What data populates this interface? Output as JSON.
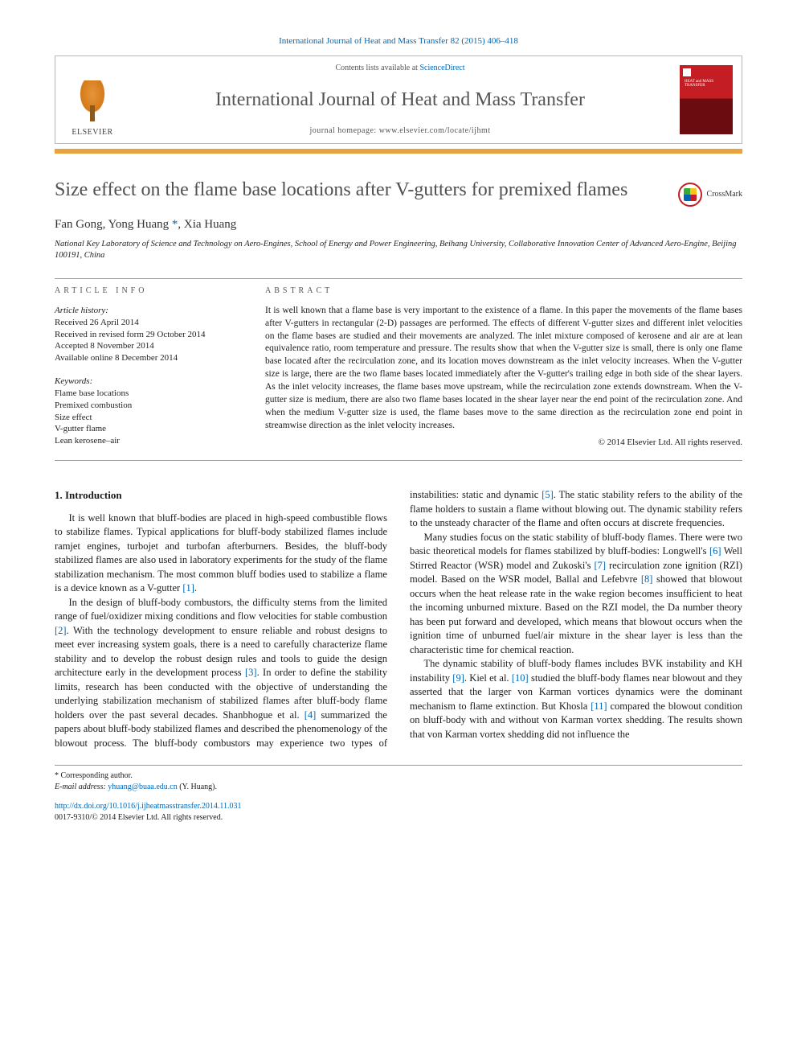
{
  "citation": "International Journal of Heat and Mass Transfer 82 (2015) 406–418",
  "masthead": {
    "publisher": "ELSEVIER",
    "contents_prefix": "Contents lists available at ",
    "contents_link": "ScienceDirect",
    "journal": "International Journal of Heat and Mass Transfer",
    "homepage_label": "journal homepage: ",
    "homepage_url": "www.elsevier.com/locate/ijhmt",
    "cover_text": "HEAT and MASS TRANSFER"
  },
  "crossmark_label": "CrossMark",
  "title": "Size effect on the flame base locations after V-gutters for premixed flames",
  "authors_html": "Fan Gong, Yong Huang *, Xia Huang",
  "authors": [
    {
      "name": "Fan Gong"
    },
    {
      "name": "Yong Huang",
      "corresponding": true
    },
    {
      "name": "Xia Huang"
    }
  ],
  "affiliation": "National Key Laboratory of Science and Technology on Aero-Engines, School of Energy and Power Engineering, Beihang University, Collaborative Innovation Center of Advanced Aero-Engine, Beijing 100191, China",
  "info_head": "ARTICLE INFO",
  "abs_head": "ABSTRACT",
  "history": {
    "label": "Article history:",
    "received": "Received 26 April 2014",
    "revised": "Received in revised form 29 October 2014",
    "accepted": "Accepted 8 November 2014",
    "online": "Available online 8 December 2014"
  },
  "keywords_label": "Keywords:",
  "keywords": [
    "Flame base locations",
    "Premixed combustion",
    "Size effect",
    "V-gutter flame",
    "Lean kerosene–air"
  ],
  "abstract": "It is well known that a flame base is very important to the existence of a flame. In this paper the movements of the flame bases after V-gutters in rectangular (2-D) passages are performed. The effects of different V-gutter sizes and different inlet velocities on the flame bases are studied and their movements are analyzed. The inlet mixture composed of kerosene and air are at lean equivalence ratio, room temperature and pressure. The results show that when the V-gutter size is small, there is only one flame base located after the recirculation zone, and its location moves downstream as the inlet velocity increases. When the V-gutter size is large, there are the two flame bases located immediately after the V-gutter's trailing edge in both side of the shear layers. As the inlet velocity increases, the flame bases move upstream, while the recirculation zone extends downstream. When the V-gutter size is medium, there are also two flame bases located in the shear layer near the end point of the recirculation zone. And when the medium V-gutter size is used, the flame bases move to the same direction as the recirculation zone end point in streamwise direction as the inlet velocity increases.",
  "copyright": "© 2014 Elsevier Ltd. All rights reserved.",
  "section1_head": "1. Introduction",
  "para1": "It is well known that bluff-bodies are placed in high-speed combustible flows to stabilize flames. Typical applications for bluff-body stabilized flames include ramjet engines, turbojet and turbofan afterburners. Besides, the bluff-body stabilized flames are also used in laboratory experiments for the study of the flame stabilization mechanism. The most common bluff bodies used to stabilize a flame is a device known as a V-gutter ",
  "para1_ref": "[1]",
  "para1_end": ".",
  "para2a": "In the design of bluff-body combustors, the difficulty stems from the limited range of fuel/oxidizer mixing conditions and flow velocities for stable combustion ",
  "para2_ref2": "[2]",
  "para2b": ". With the technology development to ensure reliable and robust designs to meet ever increasing system goals, there is a need to carefully characterize flame stability and to develop the robust design rules and tools to guide the design architecture early in the development process ",
  "para2_ref3": "[3]",
  "para2c": ". In order to define the stability limits, research has been conducted with the objective of understanding the underlying stabilization mechanism of stabilized flames after bluff-body flame holders over the past several decades. Shanbhogue et al. ",
  "para2_ref4": "[4]",
  "para2d": " summarized the papers about bluff-body stabilized flames and described the phenomenology of the blowout process. The bluff-body combustors may experience two types of instabilities: static and dynamic ",
  "para2_ref5": "[5]",
  "para2e": ". The static stability refers to the ability of the flame holders to sustain a flame without blowing out. The dynamic stability refers to the unsteady character of the flame and often occurs at discrete frequencies.",
  "para3a": "Many studies focus on the static stability of bluff-body flames. There were two basic theoretical models for flames stabilized by bluff-bodies: Longwell's ",
  "para3_ref6": "[6]",
  "para3b": " Well Stirred Reactor (WSR) model and Zukoski's ",
  "para3_ref7": "[7]",
  "para3c": " recirculation zone ignition (RZI) model. Based on the WSR model, Ballal and Lefebvre ",
  "para3_ref8": "[8]",
  "para3d": " showed that blowout occurs when the heat release rate in the wake region becomes insufficient to heat the incoming unburned mixture. Based on the RZI model, the Da number theory has been put forward and developed, which means that blowout occurs when the ignition time of unburned fuel/air mixture in the shear layer is less than the characteristic time for chemical reaction.",
  "para4a": "The dynamic stability of bluff-body flames includes BVK instability and KH instability ",
  "para4_ref9": "[9]",
  "para4b": ". Kiel et al. ",
  "para4_ref10": "[10]",
  "para4c": " studied the bluff-body flames near blowout and they asserted that the larger von Karman vortices dynamics were the dominant mechanism to flame extinction. But Khosla ",
  "para4_ref11": "[11]",
  "para4d": " compared the blowout condition on bluff-body with and without von Karman vortex shedding. The results shown that von Karman vortex shedding did not influence the",
  "footnote": {
    "corr": "* Corresponding author.",
    "email_label": "E-mail address: ",
    "email": "yhuang@buaa.edu.cn",
    "email_who": " (Y. Huang)."
  },
  "doi": {
    "url": "http://dx.doi.org/10.1016/j.ijheatmasstransfer.2014.11.031",
    "issn_line": "0017-9310/© 2014 Elsevier Ltd. All rights reserved."
  },
  "colors": {
    "link": "#0066b3",
    "accent_gold": "#e8a33d",
    "elsevier_orange": "#d47a1a",
    "cover_red": "#c41e24",
    "rule": "#999999",
    "title_gray": "#505050"
  },
  "typography": {
    "body_pt": 12.5,
    "abstract_pt": 11.5,
    "title_pt": 24,
    "journal_pt": 24,
    "small_pt": 10
  }
}
